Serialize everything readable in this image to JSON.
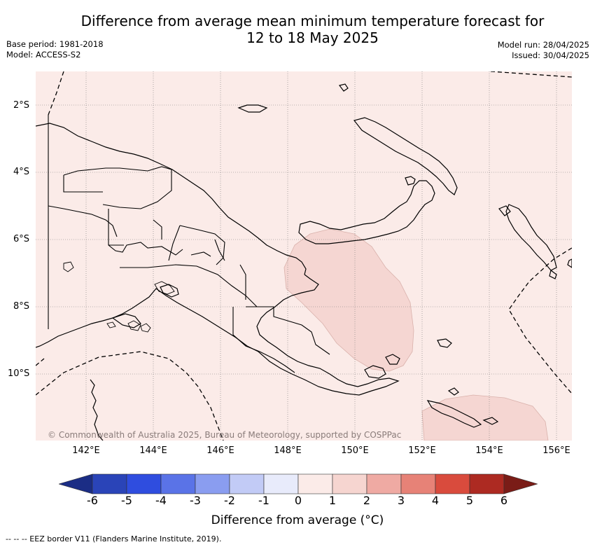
{
  "title_line1": "Difference from average mean minimum temperature forecast for",
  "title_line2": "12 to 18 May 2025",
  "base_period": "Base period: 1981-2018",
  "model": "Model: ACCESS-S2",
  "model_run": "Model run: 28/04/2025",
  "issued": "Issued: 30/04/2025",
  "copyright": "© Commonwealth of Australia 2025, Bureau of Meteorology, supported by COSPPac",
  "lat_labels": [
    "2°S",
    "4°S",
    "6°S",
    "8°S",
    "10°S"
  ],
  "lon_labels": [
    "142°E",
    "144°E",
    "146°E",
    "148°E",
    "150°E",
    "152°E",
    "154°E",
    "156°E"
  ],
  "colorbar": {
    "title": "Difference from average (°C)",
    "ticks": [
      "-6",
      "-5",
      "-4",
      "-3",
      "-2",
      "-1",
      "0",
      "1",
      "2",
      "3",
      "4",
      "5",
      "6"
    ],
    "colors": [
      "#1b2d85",
      "#2a44b8",
      "#2f4ddf",
      "#5a73e7",
      "#8a9df0",
      "#c2cbf6",
      "#e8ebfb",
      "#fbebe8",
      "#f6d5d0",
      "#efaaa3",
      "#e78277",
      "#d94b3d",
      "#ad2a22",
      "#7a1c17"
    ]
  },
  "footer": "-- -- -- EEZ border V11 (Flanders Marine Institute, 2019).",
  "map_regions": {
    "background_category": "0 to 1",
    "anomaly_patches": [
      "1 to 2",
      "1 to 2"
    ]
  }
}
